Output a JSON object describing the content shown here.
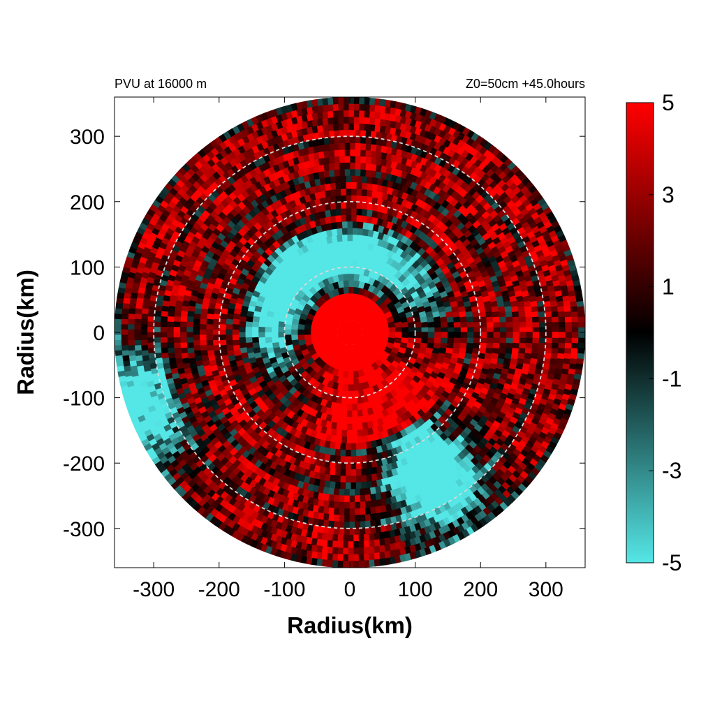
{
  "chart_data": {
    "type": "heatmap",
    "title_left": "PVU at 16000 m",
    "title_right": "Z0=50cm  +45.0hours",
    "xlabel": "Radius(km)",
    "ylabel": "Radius(km)",
    "xlim": [
      -360,
      360
    ],
    "ylim": [
      -360,
      360
    ],
    "x_ticks": [
      -300,
      -200,
      -100,
      0,
      100,
      200,
      300
    ],
    "y_ticks": [
      300,
      200,
      100,
      0,
      -100,
      -200,
      -300
    ],
    "domain_radius_km": 360,
    "reference_circles_km": [
      100,
      200,
      300
    ],
    "colorbar": {
      "min": -5,
      "max": 5,
      "ticks": [
        5,
        3,
        1,
        -1,
        -3,
        -5
      ],
      "colors": {
        "low": "#55e6e6",
        "mid": "#000000",
        "high": "#ff0000"
      }
    },
    "field_description": "PVU field in polar coordinates: core (r < 80 km) strongly positive ~5; cyan negative annulus (~80-170 km) mainly on the northern/western side; mixed dark-red/red outer rings beyond 200 km with a cyan streak in the south-east near 200-300 km."
  }
}
